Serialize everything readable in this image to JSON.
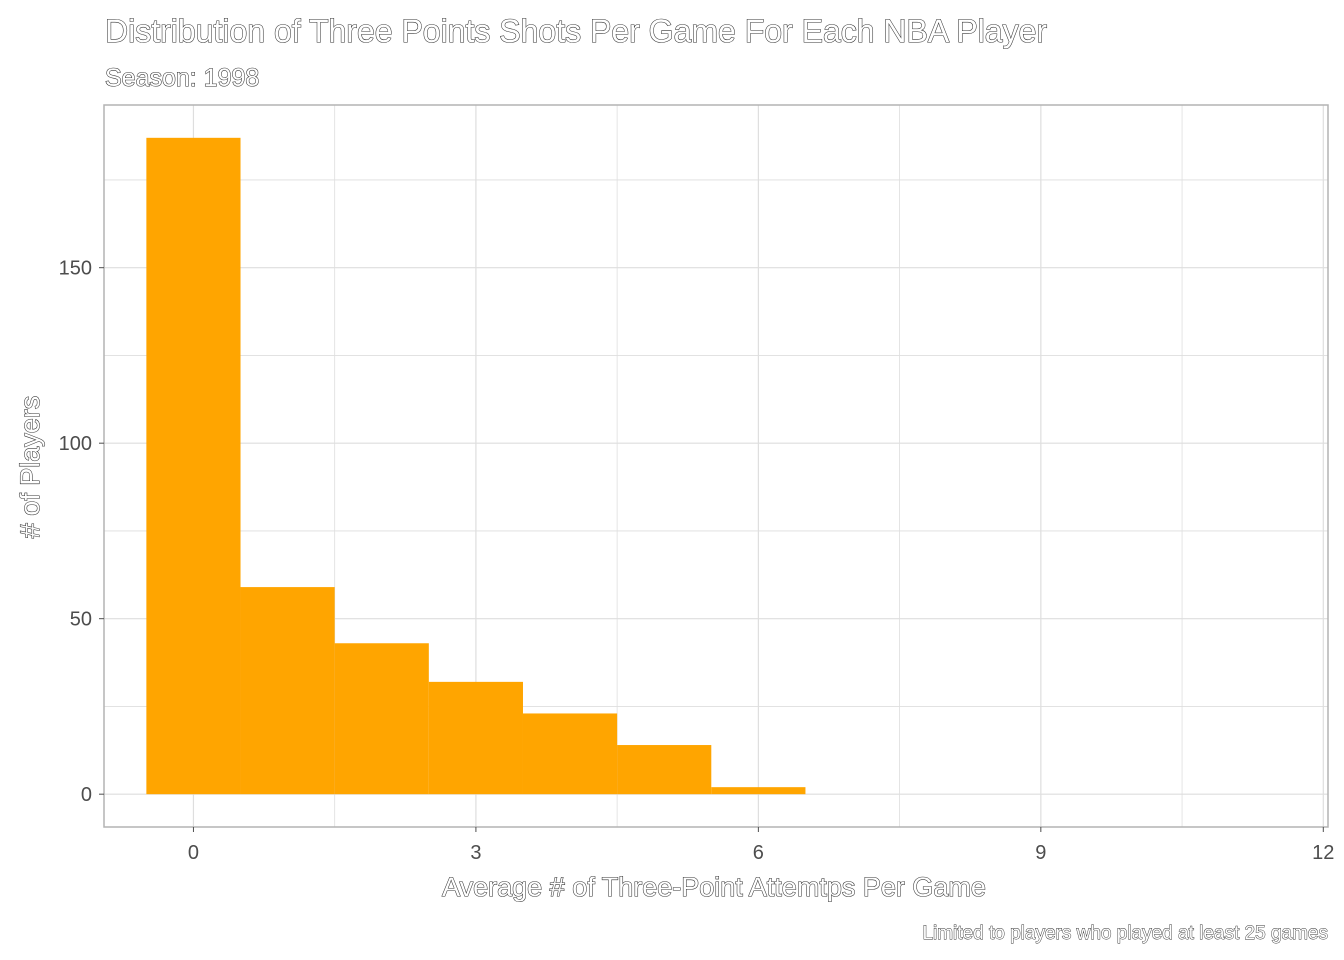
{
  "chart_data": {
    "type": "bar",
    "title": "Distribution of Three Points Shots Per Game For Each NBA Player",
    "subtitle": "Season: 1998",
    "xlabel": "Average # of Three-Point Attemtps Per Game",
    "ylabel": "# of Players",
    "caption": "Limited to players who played at least 25 games",
    "bin_width": 1,
    "bins": [
      {
        "x": 0,
        "count": 187
      },
      {
        "x": 1,
        "count": 59
      },
      {
        "x": 2,
        "count": 43
      },
      {
        "x": 3,
        "count": 32
      },
      {
        "x": 4,
        "count": 23
      },
      {
        "x": 5,
        "count": 14
      },
      {
        "x": 6,
        "count": 2
      }
    ],
    "xlim": [
      -0.95,
      12.05
    ],
    "ylim": [
      -9.35,
      196.35
    ],
    "x_ticks": [
      0,
      3,
      6,
      9,
      12
    ],
    "y_ticks": [
      0,
      50,
      100,
      150
    ],
    "grid": true,
    "bar_color": "#FFA500",
    "grid_color": "#DEDEDE",
    "panel_border_color": "#B3B3B3"
  }
}
